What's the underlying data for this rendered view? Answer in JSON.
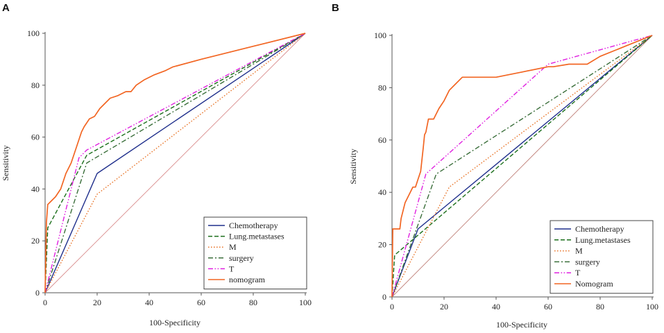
{
  "figure": {
    "panel_labels": [
      "A",
      "B"
    ]
  },
  "chart_data": [
    {
      "type": "line",
      "panel": "A",
      "title": "",
      "xlabel": "100-Specificity",
      "ylabel": "Sensitivity",
      "xlim": [
        0,
        100
      ],
      "ylim": [
        0,
        100
      ],
      "xticks": [
        0,
        20,
        40,
        60,
        80,
        100
      ],
      "yticks": [
        0,
        20,
        40,
        60,
        80,
        100
      ],
      "legend_position": "bottom-right",
      "reference_line": {
        "color": "#d98c8c",
        "x": [
          0,
          100
        ],
        "y": [
          0,
          100
        ]
      },
      "series": [
        {
          "name": "Chemotherapy",
          "color": "#1f2f8c",
          "dash": "solid",
          "x": [
            0,
            20,
            100
          ],
          "y": [
            0,
            46,
            100
          ]
        },
        {
          "name": "Lung.metastases",
          "color": "#1a6e1a",
          "dash": "dashed",
          "x": [
            0,
            1,
            16,
            100
          ],
          "y": [
            0,
            25,
            53,
            100
          ]
        },
        {
          "name": "M",
          "color": "#e8762b",
          "dash": "dotted",
          "x": [
            0,
            20,
            100
          ],
          "y": [
            0,
            38,
            100
          ]
        },
        {
          "name": "surgery",
          "color": "#3a6e3a",
          "dash": "dashdot",
          "x": [
            0,
            16,
            100
          ],
          "y": [
            0,
            50,
            100
          ]
        },
        {
          "name": "T",
          "color": "#e020e0",
          "dash": "dashdotdot",
          "x": [
            0,
            13,
            16,
            100
          ],
          "y": [
            0,
            52,
            55,
            100
          ]
        },
        {
          "name": "nomogram",
          "color": "#f26522",
          "dash": "solid",
          "x": [
            0,
            0.5,
            1,
            2,
            4,
            6,
            8,
            10,
            12,
            14,
            15,
            17,
            19,
            21,
            23,
            25,
            28,
            31,
            33,
            35,
            38,
            42,
            46,
            49,
            60,
            80,
            100
          ],
          "y": [
            0,
            27,
            34,
            35,
            37,
            40,
            46,
            50,
            56,
            62,
            64,
            67,
            68,
            71,
            73,
            75,
            76,
            77.5,
            77.5,
            80,
            82,
            84,
            85.5,
            87,
            90,
            95,
            100
          ]
        }
      ]
    },
    {
      "type": "line",
      "panel": "B",
      "title": "",
      "xlabel": "100-Specificity",
      "ylabel": "Sensitivity",
      "xlim": [
        0,
        100
      ],
      "ylim": [
        0,
        100
      ],
      "xticks": [
        0,
        20,
        40,
        60,
        80,
        100
      ],
      "yticks": [
        0,
        20,
        40,
        60,
        80,
        100
      ],
      "legend_position": "bottom-right",
      "reference_line": {
        "color": "#c0827a",
        "x": [
          0,
          100
        ],
        "y": [
          0,
          100
        ]
      },
      "series": [
        {
          "name": "Chemotherapy",
          "color": "#1f2f8c",
          "dash": "solid",
          "x": [
            0,
            10,
            100
          ],
          "y": [
            0,
            26,
            100
          ]
        },
        {
          "name": "Lung.metastases",
          "color": "#1a6e1a",
          "dash": "dashed",
          "x": [
            0,
            1,
            100
          ],
          "y": [
            0,
            16,
            100
          ]
        },
        {
          "name": "M",
          "color": "#e8762b",
          "dash": "dotted",
          "x": [
            0,
            22,
            100
          ],
          "y": [
            0,
            42,
            100
          ]
        },
        {
          "name": "surgery",
          "color": "#3a6e3a",
          "dash": "dashdot",
          "x": [
            0,
            17,
            100
          ],
          "y": [
            0,
            47,
            100
          ]
        },
        {
          "name": "T",
          "color": "#e020e0",
          "dash": "dashdotdot",
          "x": [
            0,
            13,
            60,
            100
          ],
          "y": [
            0,
            47,
            89,
            100
          ]
        },
        {
          "name": "Nomogram",
          "color": "#f26522",
          "dash": "solid",
          "x": [
            0,
            0.3,
            3,
            3.5,
            5,
            7,
            8,
            9,
            10,
            11,
            12,
            12.5,
            13,
            14,
            15,
            16,
            18,
            20,
            22,
            24,
            27,
            40,
            50,
            60,
            62,
            68,
            75,
            80,
            90,
            100
          ],
          "y": [
            0,
            26,
            26,
            30,
            36,
            40,
            42,
            42,
            45,
            48,
            57,
            62,
            63,
            68,
            68,
            68,
            72,
            75,
            79,
            81,
            84,
            84,
            86,
            88,
            88,
            89,
            89,
            92,
            96,
            100
          ]
        }
      ]
    }
  ]
}
